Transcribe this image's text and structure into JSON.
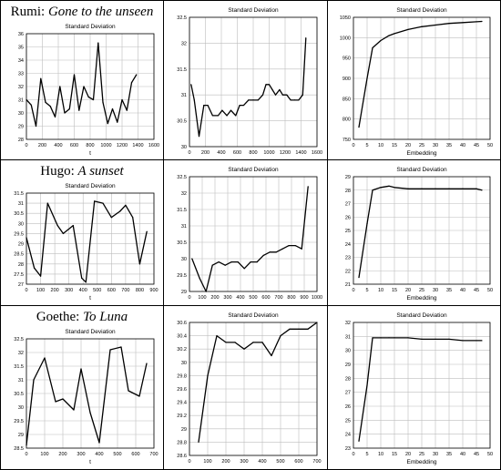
{
  "rows": [
    {
      "poem_author": "Rumi:",
      "poem_title": "Gone to the unseen"
    },
    {
      "poem_author": "Hugo:",
      "poem_title": "A sunset"
    },
    {
      "poem_author": "Goethe:",
      "poem_title": "To Luna"
    }
  ],
  "chart_data": [
    {
      "type": "line",
      "title": "Standard Deviation",
      "xlabel": "t",
      "ylabel": "",
      "xlim": [
        0,
        1600
      ],
      "ylim": [
        28,
        36
      ],
      "xticks": [
        0,
        200,
        400,
        600,
        800,
        1000,
        1200,
        1400,
        1600
      ],
      "yticks": [
        28,
        29,
        30,
        31,
        32,
        33,
        34,
        35,
        36
      ],
      "x": [
        0,
        60,
        120,
        180,
        240,
        300,
        360,
        420,
        480,
        540,
        600,
        660,
        720,
        780,
        840,
        900,
        960,
        1020,
        1080,
        1140,
        1200,
        1260,
        1320,
        1380
      ],
      "y": [
        31.0,
        30.6,
        29.0,
        32.6,
        30.8,
        30.5,
        29.7,
        32.0,
        30.0,
        30.3,
        32.9,
        30.2,
        32.0,
        31.2,
        31.0,
        35.3,
        30.8,
        29.2,
        30.3,
        29.3,
        31.0,
        30.2,
        32.3,
        32.9
      ]
    },
    {
      "type": "line",
      "title": "Standard Deviation",
      "xlabel": "",
      "ylabel": "",
      "xlim": [
        0,
        1600
      ],
      "ylim": [
        30.0,
        32.5
      ],
      "xticks": [
        0,
        200,
        400,
        600,
        800,
        1000,
        1200,
        1400,
        1600
      ],
      "yticks": [
        30.0,
        30.5,
        31.0,
        31.5,
        32.0,
        32.5
      ],
      "x": [
        20,
        60,
        120,
        180,
        230,
        290,
        360,
        410,
        470,
        520,
        580,
        630,
        680,
        740,
        800,
        860,
        920,
        960,
        1000,
        1040,
        1080,
        1130,
        1170,
        1220,
        1270,
        1320,
        1370,
        1420,
        1460
      ],
      "y": [
        31.2,
        30.9,
        30.2,
        30.8,
        30.8,
        30.6,
        30.6,
        30.7,
        30.6,
        30.7,
        30.6,
        30.8,
        30.8,
        30.9,
        30.9,
        30.9,
        31.0,
        31.2,
        31.2,
        31.1,
        31.0,
        31.1,
        31.0,
        31.0,
        30.9,
        30.9,
        30.9,
        31.0,
        32.1
      ]
    },
    {
      "type": "line",
      "title": "Standard Deviation",
      "xlabel": "Embedding",
      "ylabel": "",
      "xlim": [
        0,
        50
      ],
      "ylim": [
        750,
        1050
      ],
      "xticks": [
        0,
        5,
        10,
        15,
        20,
        25,
        30,
        35,
        40,
        45,
        50
      ],
      "yticks": [
        750,
        800,
        850,
        900,
        950,
        1000,
        1050
      ],
      "x": [
        2,
        5,
        7,
        10,
        13,
        15,
        20,
        25,
        30,
        35,
        40,
        45,
        47
      ],
      "y": [
        780,
        900,
        975,
        993,
        1005,
        1010,
        1020,
        1027,
        1031,
        1035,
        1037,
        1039,
        1040
      ]
    },
    {
      "type": "line",
      "title": "Standard Deviation",
      "xlabel": "t",
      "ylabel": "",
      "xlim": [
        0,
        900
      ],
      "ylim": [
        27.0,
        31.5
      ],
      "xticks": [
        0,
        100,
        200,
        300,
        400,
        500,
        600,
        700,
        800,
        900
      ],
      "yticks": [
        27.0,
        27.5,
        28.0,
        28.5,
        29.0,
        29.5,
        30.0,
        30.5,
        31.0,
        31.5
      ],
      "x": [
        0,
        55,
        100,
        150,
        220,
        260,
        330,
        390,
        420,
        480,
        540,
        600,
        660,
        700,
        750,
        800,
        850
      ],
      "y": [
        29.3,
        27.8,
        27.4,
        31.0,
        29.9,
        29.5,
        29.9,
        27.3,
        27.1,
        31.1,
        31.0,
        30.3,
        30.6,
        30.9,
        30.3,
        28.0,
        29.6
      ]
    },
    {
      "type": "line",
      "title": "Standard Deviation",
      "xlabel": "",
      "ylabel": "",
      "xlim": [
        0,
        1000
      ],
      "ylim": [
        29.0,
        32.5
      ],
      "xticks": [
        0,
        100,
        200,
        300,
        400,
        500,
        600,
        700,
        800,
        900,
        1000
      ],
      "yticks": [
        29.0,
        29.5,
        30.0,
        30.5,
        31.0,
        31.5,
        32.0,
        32.5
      ],
      "x": [
        20,
        80,
        130,
        180,
        230,
        280,
        330,
        380,
        430,
        480,
        530,
        580,
        630,
        680,
        730,
        780,
        830,
        880,
        930
      ],
      "y": [
        30.0,
        29.4,
        29.0,
        29.8,
        29.9,
        29.8,
        29.9,
        29.9,
        29.7,
        29.9,
        29.9,
        30.1,
        30.2,
        30.2,
        30.3,
        30.4,
        30.4,
        30.3,
        32.2
      ]
    },
    {
      "type": "line",
      "title": "Standard Deviation",
      "xlabel": "Embedding",
      "ylabel": "",
      "xlim": [
        0,
        50
      ],
      "ylim": [
        21,
        29
      ],
      "xticks": [
        0,
        5,
        10,
        15,
        20,
        25,
        30,
        35,
        40,
        45,
        50
      ],
      "yticks": [
        21,
        22,
        23,
        24,
        25,
        26,
        27,
        28,
        29
      ],
      "x": [
        2,
        5,
        7,
        10,
        13,
        15,
        20,
        25,
        30,
        35,
        40,
        45,
        47
      ],
      "y": [
        21.5,
        25.5,
        28.0,
        28.2,
        28.3,
        28.2,
        28.1,
        28.1,
        28.1,
        28.1,
        28.1,
        28.1,
        28.0
      ]
    },
    {
      "type": "line",
      "title": "Standard Deviation",
      "xlabel": "t",
      "ylabel": "",
      "xlim": [
        0,
        700
      ],
      "ylim": [
        28.5,
        32.5
      ],
      "xticks": [
        0,
        100,
        200,
        300,
        400,
        500,
        600,
        700
      ],
      "yticks": [
        28.5,
        29.0,
        29.5,
        30.0,
        30.5,
        31.0,
        31.5,
        32.0,
        32.5
      ],
      "x": [
        0,
        40,
        100,
        160,
        200,
        260,
        300,
        350,
        400,
        460,
        520,
        560,
        620,
        660
      ],
      "y": [
        28.6,
        31.0,
        31.8,
        30.2,
        30.3,
        29.9,
        31.4,
        29.8,
        28.7,
        32.1,
        32.2,
        30.6,
        30.4,
        31.6
      ]
    },
    {
      "type": "line",
      "title": "Standard Deviation",
      "xlabel": "",
      "ylabel": "",
      "xlim": [
        0,
        700
      ],
      "ylim": [
        28.6,
        30.6
      ],
      "xticks": [
        0,
        100,
        200,
        300,
        400,
        500,
        600,
        700
      ],
      "yticks": [
        28.6,
        28.8,
        29.0,
        29.2,
        29.4,
        29.6,
        29.8,
        30.0,
        30.2,
        30.4,
        30.6
      ],
      "x": [
        50,
        100,
        150,
        200,
        250,
        300,
        350,
        400,
        450,
        500,
        550,
        600,
        650,
        700
      ],
      "y": [
        28.8,
        29.8,
        30.4,
        30.3,
        30.3,
        30.2,
        30.3,
        30.3,
        30.1,
        30.4,
        30.5,
        30.5,
        30.5,
        30.6
      ]
    },
    {
      "type": "line",
      "title": "Standard Deviation",
      "xlabel": "Embedding",
      "ylabel": "",
      "xlim": [
        0,
        50
      ],
      "ylim": [
        23,
        32
      ],
      "xticks": [
        0,
        5,
        10,
        15,
        20,
        25,
        30,
        35,
        40,
        45,
        50
      ],
      "yticks": [
        23,
        24,
        25,
        26,
        27,
        28,
        29,
        30,
        31,
        32
      ],
      "x": [
        2,
        5,
        7,
        10,
        13,
        15,
        20,
        25,
        30,
        35,
        40,
        45,
        47
      ],
      "y": [
        23.5,
        27.5,
        30.9,
        30.9,
        30.9,
        30.9,
        30.9,
        30.8,
        30.8,
        30.8,
        30.7,
        30.7,
        30.7
      ]
    }
  ]
}
